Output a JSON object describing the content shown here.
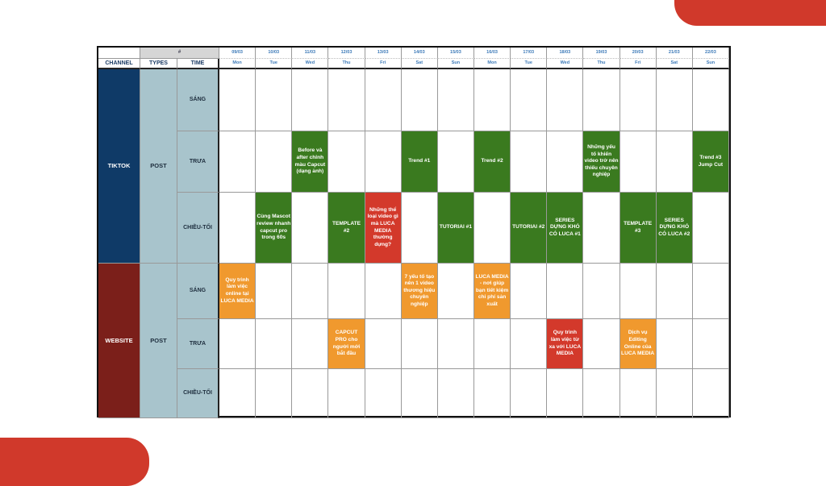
{
  "colors": {
    "green": "#3a7a1f",
    "red": "#d3392b",
    "orange": "#f0992e",
    "tiktok": "#0f3a67",
    "website": "#7b1f1a"
  },
  "header": {
    "hash": "#",
    "channel": "CHANNEL",
    "types": "TYPES",
    "time": "TIME"
  },
  "days": [
    [
      "09/03",
      "Mon"
    ],
    [
      "10/03",
      "Tue"
    ],
    [
      "11/03",
      "Wed"
    ],
    [
      "12/03",
      "Thu"
    ],
    [
      "13/03",
      "Fri"
    ],
    [
      "14/03",
      "Sat"
    ],
    [
      "15/03",
      "Sun"
    ],
    [
      "16/03",
      "Mon"
    ],
    [
      "17/03",
      "Tue"
    ],
    [
      "18/03",
      "Wed"
    ],
    [
      "19/03",
      "Thu"
    ],
    [
      "20/03",
      "Fri"
    ],
    [
      "21/03",
      "Sat"
    ],
    [
      "22/03",
      "Sun"
    ]
  ],
  "channels": [
    {
      "name": "TIKTOK",
      "type": "POST",
      "color": "tiktok",
      "slots": [
        {
          "time": "SÁNG",
          "events": []
        },
        {
          "time": "TRƯA",
          "events": [
            [
              2,
              "Before và after chỉnh màu Capcut (dạng ảnh)",
              "green"
            ],
            [
              5,
              "Trend #1",
              "green"
            ],
            [
              7,
              "Trend #2",
              "green"
            ],
            [
              10,
              "Những yếu tố khiến video trở nên thiếu chuyên nghiệp",
              "green"
            ],
            [
              13,
              "Trend #3 Jump Cut",
              "green"
            ]
          ]
        },
        {
          "time": "CHIỀU-TỐI",
          "events": [
            [
              1,
              "Cùng Mascot review nhanh capcut pro trong 60s",
              "green"
            ],
            [
              3,
              "TEMPLATE #2",
              "green"
            ],
            [
              4,
              "Những thể loại video gì mà LUCA MEDIA thường dựng?",
              "red"
            ],
            [
              6,
              "TUTORIAl #1",
              "green"
            ],
            [
              8,
              "TUTORIAl #2",
              "green"
            ],
            [
              9,
              "SERIES DỰNG KHÓ CÓ LUCA #1",
              "green"
            ],
            [
              11,
              "TEMPLATE #3",
              "green"
            ],
            [
              12,
              "SERIES DỰNG KHÓ CÓ LUCA #2",
              "green"
            ]
          ]
        }
      ]
    },
    {
      "name": "WEBSITE",
      "type": "POST",
      "color": "website",
      "slots": [
        {
          "time": "SÁNG",
          "events": [
            [
              0,
              "Quy trình làm việc online tại LUCA MEDIA",
              "orange"
            ],
            [
              5,
              "7 yếu tố tạo nên 1 video thương hiệu chuyên nghiệp",
              "orange"
            ],
            [
              7,
              "LUCA MEDIA - nơi giúp bạn tiết kiệm chi phí sản xuất",
              "orange"
            ]
          ]
        },
        {
          "time": "TRƯA",
          "events": [
            [
              3,
              "CAPCUT PRO cho người mới bắt đầu",
              "orange"
            ],
            [
              9,
              "Quy trình làm việc từ xa với LUCA MEDIA",
              "red"
            ],
            [
              11,
              "Dịch vụ Editing Online của LUCA MEDIA",
              "orange"
            ]
          ]
        },
        {
          "time": "CHIỀU-TỐI",
          "events": []
        }
      ]
    }
  ]
}
